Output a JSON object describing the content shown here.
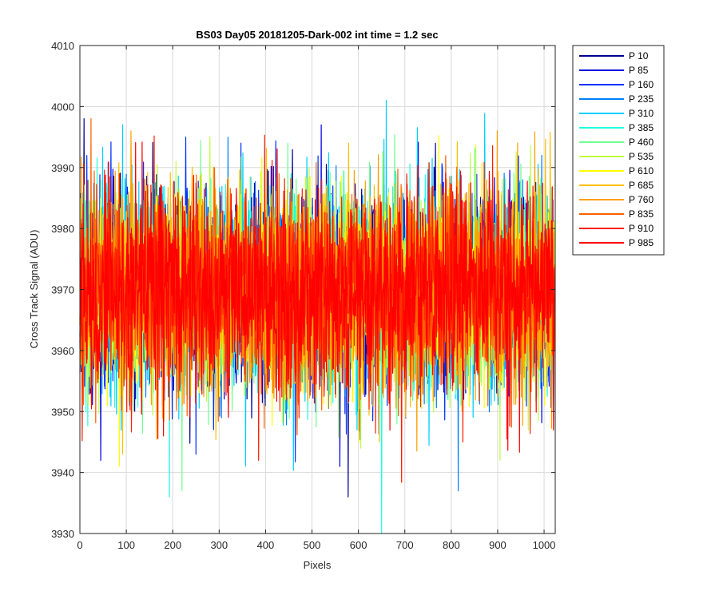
{
  "chart_data": {
    "type": "line",
    "title": "BS03 Day05 20181205-Dark-002 int time = 1.2 sec",
    "xlabel": "Pixels",
    "ylabel": "Cross Track Signal (ADU)",
    "xlim": [
      0,
      1024
    ],
    "ylim": [
      3930,
      4010
    ],
    "x_ticks": [
      0,
      100,
      200,
      300,
      400,
      500,
      600,
      700,
      800,
      900,
      1000
    ],
    "x_tick_labels": [
      "0",
      "100",
      "200",
      "300",
      "400",
      "500",
      "600",
      "700",
      "800",
      "900",
      "1000"
    ],
    "y_ticks": [
      3930,
      3940,
      3950,
      3960,
      3970,
      3980,
      3990,
      4000,
      4010
    ],
    "y_tick_labels": [
      "3930",
      "3940",
      "3950",
      "3960",
      "3970",
      "3980",
      "3990",
      "4000",
      "4010"
    ],
    "grid": true,
    "legend_position": "outside-top-right",
    "noise_model": {
      "mean": 3970,
      "std_dev": 8,
      "num_points": 1024
    },
    "series": [
      {
        "name": "P 10",
        "color": "#00008f",
        "peaks": [
          [
            9,
            3998
          ],
          [
            578,
            3936
          ]
        ]
      },
      {
        "name": "P 85",
        "color": "#0000df",
        "peaks": [
          [
            45,
            3942
          ],
          [
            520,
            3997
          ],
          [
            560,
            3941
          ]
        ]
      },
      {
        "name": "P 160",
        "color": "#0030ff",
        "peaks": [
          [
            228,
            3995
          ],
          [
            250,
            3943
          ]
        ]
      },
      {
        "name": "P 235",
        "color": "#0080ff",
        "peaks": [
          [
            815,
            3937
          ],
          [
            995,
            3992
          ]
        ]
      },
      {
        "name": "P 310",
        "color": "#00cfff",
        "peaks": [
          [
            660,
            4001
          ],
          [
            92,
            3997
          ]
        ]
      },
      {
        "name": "P 385",
        "color": "#20ffdf",
        "peaks": [
          [
            650,
            3930
          ],
          [
            193,
            3936
          ]
        ]
      },
      {
        "name": "P 460",
        "color": "#70ff8f",
        "peaks": [
          [
            220,
            3937
          ],
          [
            448,
            3994
          ]
        ]
      },
      {
        "name": "P 535",
        "color": "#bfff40",
        "peaks": [
          [
            905,
            3942
          ],
          [
            605,
            3944
          ]
        ]
      },
      {
        "name": "P 610",
        "color": "#ffff00",
        "peaks": [
          [
            85,
            3941
          ],
          [
            600,
            3945
          ]
        ]
      },
      {
        "name": "P 685",
        "color": "#ffbf00",
        "peaks": [
          [
            92,
            3943
          ],
          [
            645,
            3945
          ]
        ]
      },
      {
        "name": "P 760",
        "color": "#ff9f00",
        "peaks": [
          [
            899,
            3996
          ],
          [
            110,
            3996
          ]
        ]
      },
      {
        "name": "P 835",
        "color": "#ff6000",
        "peaks": [
          [
            24,
            3998
          ],
          [
            290,
            3990
          ]
        ]
      },
      {
        "name": "P 910",
        "color": "#ff2000",
        "peaks": [
          [
            385,
            3942
          ],
          [
            825,
            3945
          ]
        ]
      },
      {
        "name": "P 985",
        "color": "#ff0000",
        "peaks": [
          [
            180,
            3946
          ],
          [
            1020,
            3947
          ]
        ]
      }
    ]
  }
}
